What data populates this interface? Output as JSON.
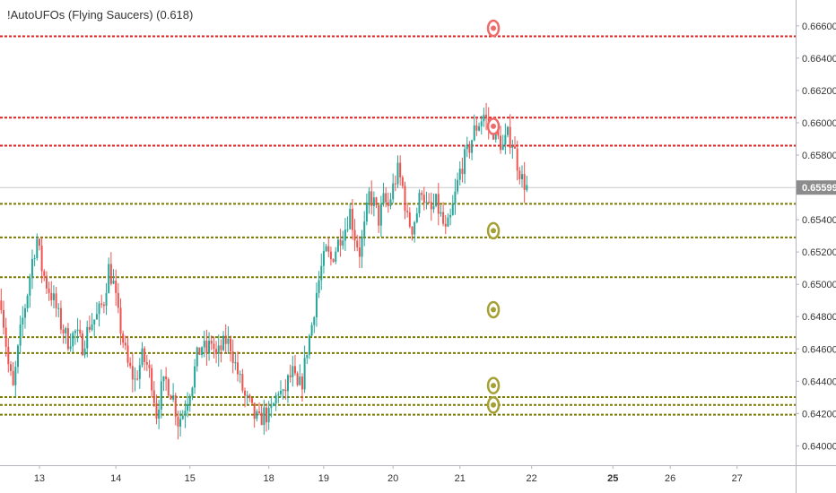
{
  "indicator": {
    "title": "!AutoUFOs (Flying Saucers) (0.618)"
  },
  "colors": {
    "up": "#26a69a",
    "down": "#ef5350",
    "resistance": "#e31c1c",
    "support": "#7a7a00",
    "ufo_red": "#f06a6a",
    "ufo_olive": "#a4a034",
    "last_price_bg": "#8c8c8c"
  },
  "chart_data": {
    "type": "candlestick",
    "symbol_pair_scale": "price",
    "ylim": [
      0.6388,
      0.6676
    ],
    "y_ticks": [
      "0.66600",
      "0.66400",
      "0.66200",
      "0.66000",
      "0.65800",
      "0.65600",
      "0.65400",
      "0.65200",
      "0.65000",
      "0.64800",
      "0.64600",
      "0.64400",
      "0.64200",
      "0.64000"
    ],
    "x_ticks": [
      {
        "label": "13",
        "bar": 16
      },
      {
        "label": "14",
        "bar": 48
      },
      {
        "label": "15",
        "bar": 79
      },
      {
        "label": "18",
        "bar": 112
      },
      {
        "label": "19",
        "bar": 135
      },
      {
        "label": "20",
        "bar": 164
      },
      {
        "label": "21",
        "bar": 192
      },
      {
        "label": "22",
        "bar": 222,
        "future": true
      },
      {
        "label": "25",
        "bar": 256,
        "future": true,
        "bold": true
      },
      {
        "label": "26",
        "bar": 280,
        "future": true
      },
      {
        "label": "27",
        "bar": 308,
        "future": true
      }
    ],
    "last_price": {
      "label": "0.65599",
      "value": 0.65599
    },
    "resistance_levels": [
      0.66535,
      0.66032,
      0.65858
    ],
    "support_levels": [
      0.65498,
      0.6529,
      0.65044,
      0.64673,
      0.64574,
      0.64302,
      0.64253,
      0.64193
    ],
    "ufo_markers": [
      {
        "value": 0.66585,
        "kind": "resistance"
      },
      {
        "value": 0.65978,
        "kind": "resistance"
      },
      {
        "value": 0.65332,
        "kind": "support"
      },
      {
        "value": 0.64843,
        "kind": "support"
      },
      {
        "value": 0.64373,
        "kind": "support"
      },
      {
        "value": 0.64253,
        "kind": "support"
      }
    ],
    "marker_bar": 206,
    "total_bars": 333,
    "path": [
      [
        0,
        0.649
      ],
      [
        3,
        0.645
      ],
      [
        5,
        0.6435
      ],
      [
        8,
        0.647
      ],
      [
        11,
        0.6495
      ],
      [
        13,
        0.6515
      ],
      [
        15,
        0.6528
      ],
      [
        17,
        0.651
      ],
      [
        19,
        0.65
      ],
      [
        22,
        0.649
      ],
      [
        25,
        0.6475
      ],
      [
        28,
        0.6465
      ],
      [
        31,
        0.647
      ],
      [
        34,
        0.6462
      ],
      [
        37,
        0.6475
      ],
      [
        40,
        0.648
      ],
      [
        43,
        0.649
      ],
      [
        45,
        0.651
      ],
      [
        47,
        0.65
      ],
      [
        49,
        0.648
      ],
      [
        51,
        0.6465
      ],
      [
        53,
        0.645
      ],
      [
        56,
        0.644
      ],
      [
        59,
        0.6455
      ],
      [
        61,
        0.645
      ],
      [
        63,
        0.644
      ],
      [
        65,
        0.642
      ],
      [
        67,
        0.6435
      ],
      [
        69,
        0.644
      ],
      [
        72,
        0.643
      ],
      [
        74,
        0.6415
      ],
      [
        76,
        0.642
      ],
      [
        78,
        0.643
      ],
      [
        80,
        0.644
      ],
      [
        82,
        0.6455
      ],
      [
        84,
        0.6462
      ],
      [
        86,
        0.6458
      ],
      [
        88,
        0.6465
      ],
      [
        90,
        0.6455
      ],
      [
        92,
        0.646
      ],
      [
        94,
        0.6465
      ],
      [
        96,
        0.6462
      ],
      [
        98,
        0.645
      ],
      [
        100,
        0.644
      ],
      [
        102,
        0.643
      ],
      [
        104,
        0.6425
      ],
      [
        106,
        0.6418
      ],
      [
        108,
        0.6415
      ],
      [
        110,
        0.642
      ],
      [
        112,
        0.6418
      ],
      [
        114,
        0.6425
      ],
      [
        116,
        0.6435
      ],
      [
        118,
        0.643
      ],
      [
        120,
        0.644
      ],
      [
        122,
        0.6445
      ],
      [
        124,
        0.6435
      ],
      [
        126,
        0.644
      ],
      [
        128,
        0.646
      ],
      [
        130,
        0.6475
      ],
      [
        132,
        0.6495
      ],
      [
        134,
        0.651
      ],
      [
        136,
        0.652
      ],
      [
        138,
        0.6515
      ],
      [
        140,
        0.6522
      ],
      [
        142,
        0.653
      ],
      [
        144,
        0.6535
      ],
      [
        146,
        0.6545
      ],
      [
        148,
        0.653
      ],
      [
        150,
        0.652
      ],
      [
        152,
        0.6535
      ],
      [
        154,
        0.6555
      ],
      [
        156,
        0.655
      ],
      [
        158,
        0.654
      ],
      [
        160,
        0.6552
      ],
      [
        162,
        0.6548
      ],
      [
        164,
        0.656
      ],
      [
        166,
        0.657
      ],
      [
        168,
        0.656
      ],
      [
        170,
        0.654
      ],
      [
        172,
        0.6535
      ],
      [
        174,
        0.6545
      ],
      [
        176,
        0.656
      ],
      [
        178,
        0.6548
      ],
      [
        180,
        0.6545
      ],
      [
        182,
        0.655
      ],
      [
        184,
        0.6542
      ],
      [
        186,
        0.6532
      ],
      [
        188,
        0.654
      ],
      [
        190,
        0.6555
      ],
      [
        192,
        0.657
      ],
      [
        194,
        0.6578
      ],
      [
        196,
        0.6585
      ],
      [
        198,
        0.6595
      ],
      [
        200,
        0.66
      ],
      [
        202,
        0.6605
      ],
      [
        204,
        0.6598
      ],
      [
        206,
        0.6595
      ],
      [
        208,
        0.659
      ],
      [
        210,
        0.6585
      ],
      [
        212,
        0.6592
      ],
      [
        214,
        0.6588
      ],
      [
        216,
        0.6575
      ],
      [
        218,
        0.6565
      ],
      [
        220,
        0.656
      ]
    ]
  }
}
